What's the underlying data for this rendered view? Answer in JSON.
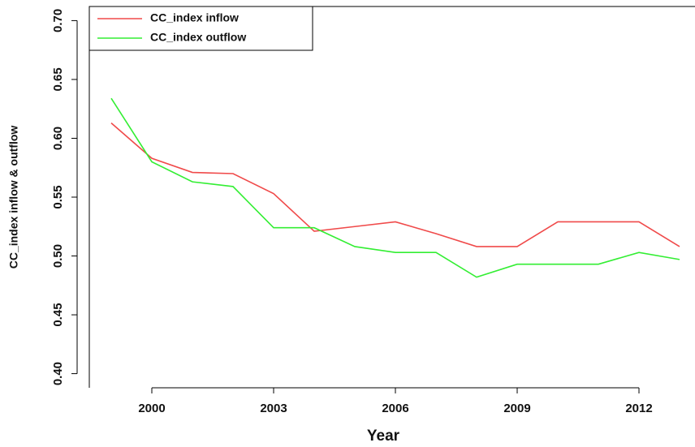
{
  "chart_data": {
    "type": "line",
    "x_label": "Year",
    "y_label": "CC_index inflow & outflow",
    "x": [
      1999,
      2000,
      2001,
      2002,
      2003,
      2004,
      2005,
      2006,
      2007,
      2008,
      2009,
      2010,
      2011,
      2012,
      2013
    ],
    "series": [
      {
        "name": "CC_index inflow",
        "color": "#f04a4a",
        "values": [
          0.613,
          0.583,
          0.571,
          0.57,
          0.553,
          0.521,
          0.525,
          0.529,
          0.519,
          0.508,
          0.508,
          0.529,
          0.529,
          0.529,
          0.508
        ]
      },
      {
        "name": "CC_index outflow",
        "color": "#33ee33",
        "values": [
          0.634,
          0.58,
          0.563,
          0.559,
          0.524,
          0.524,
          0.508,
          0.503,
          0.503,
          0.482,
          0.493,
          0.493,
          0.493,
          0.503,
          0.497
        ]
      }
    ],
    "xlim": [
      1998.46,
      2013.38
    ],
    "ylim": [
      0.388,
      0.712
    ],
    "xticks": [
      2000,
      2003,
      2006,
      2009,
      2012
    ],
    "yticks": [
      {
        "value": 0.4,
        "label": "0.40"
      },
      {
        "value": 0.45,
        "label": "0.45"
      },
      {
        "value": 0.5,
        "label": "0.50"
      },
      {
        "value": 0.55,
        "label": "0.55"
      },
      {
        "value": 0.6,
        "label": "0.60"
      },
      {
        "value": 0.65,
        "label": "0.65"
      },
      {
        "value": 0.7,
        "label": "0.70"
      }
    ],
    "legend": "top-left"
  }
}
